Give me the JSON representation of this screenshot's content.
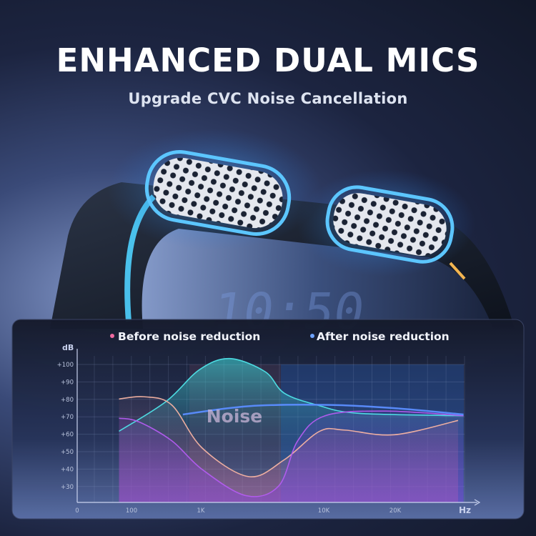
{
  "header": {
    "title": "ENHANCED DUAL MICS",
    "subtitle": "Upgrade CVC Noise Cancellation"
  },
  "device": {
    "clock_display": "10:50"
  },
  "chart_data": {
    "type": "area",
    "title": "",
    "xlabel": "Hz",
    "ylabel": "dB",
    "x_tick_labels": [
      "0",
      "100",
      "1K",
      "10K",
      "20K"
    ],
    "y_tick_labels": [
      "+100",
      "+90",
      "+80",
      "+70",
      "+60",
      "+50",
      "+40",
      "+30"
    ],
    "y_ticks": [
      100,
      90,
      80,
      70,
      60,
      50,
      40,
      30
    ],
    "grid": true,
    "legend": {
      "placement": "top",
      "entries": [
        {
          "label": "Before noise reduction",
          "color": "#f06aa0"
        },
        {
          "label": "After noise reduction",
          "color": "#6fa4ff"
        }
      ]
    },
    "annotation": "Noise",
    "series": [
      {
        "color": "#4fe3e8",
        "x": [
          77,
          316,
          955,
          1711,
          3329,
          4762,
          8790,
          13990,
          38800
        ],
        "y": [
          61.7,
          78.8,
          97,
          103.4,
          95.9,
          83.6,
          76.8,
          72,
          70.6
        ]
      },
      {
        "color": "#f6b3a2",
        "x": [
          77,
          151,
          380,
          1026,
          2449,
          4762,
          9260,
          12230,
          19830,
          36800
        ],
        "y": [
          80.2,
          81.5,
          76.8,
          52.1,
          35.7,
          45.3,
          61.7,
          62.4,
          59.7,
          67.9
        ]
      },
      {
        "color": "#b35cf0",
        "x": [
          77,
          126,
          380,
          1026,
          2326,
          4297,
          6150,
          10134,
          18300,
          38800
        ],
        "y": [
          69.2,
          67.2,
          56.3,
          39.8,
          24.8,
          30.3,
          56.3,
          70.6,
          73.3,
          70.6
        ]
      },
      {
        "color": "#5b8dff",
        "x": [
          550,
          2449,
          10694,
          20940,
          38800
        ],
        "y": [
          71.3,
          76.1,
          76.8,
          74.7,
          71.3
        ]
      }
    ]
  }
}
